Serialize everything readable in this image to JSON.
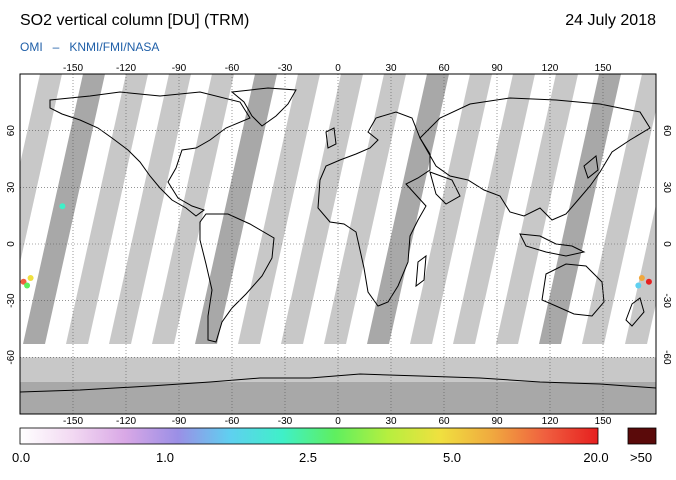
{
  "header": {
    "title": "SO2 vertical column [DU] (TRM)",
    "date": "24 July 2018",
    "credit_instrument": "OMI",
    "credit_separator": "–",
    "credit_agencies": "KNMI/FMI/NASA"
  },
  "map": {
    "projection": "equirectangular",
    "lon_range": [
      -180,
      180
    ],
    "lat_range": [
      -90,
      90
    ],
    "lon_ticks": [
      -150,
      -120,
      -90,
      -60,
      -30,
      0,
      30,
      60,
      90,
      120,
      150
    ],
    "lat_ticks": [
      60,
      30,
      0,
      -30,
      -60
    ],
    "lon_tick_labels": [
      "-150",
      "-120",
      "-90",
      "-60",
      "-30",
      "0",
      "30",
      "60",
      "90",
      "120",
      "150"
    ],
    "lat_tick_labels": [
      "60",
      "30",
      "0",
      "-30",
      "-60"
    ],
    "grid": "dotted",
    "no_data_color": "#a8a8a8",
    "swath_gap_color": "#c8c8c8",
    "land_outline_color": "#000000"
  },
  "colorbar": {
    "labels": [
      "0.0",
      "1.0",
      "2.5",
      "5.0",
      "20.0"
    ],
    "overflow_label": ">50",
    "overflow_color": "#5a0a0a",
    "colors": [
      "#ffffff",
      "#f2d9f2",
      "#d9a8e6",
      "#9b8fe6",
      "#5fd0f0",
      "#3ff0c8",
      "#5fef5f",
      "#b6ef3f",
      "#f0e03f",
      "#f0a83f",
      "#f05f3f",
      "#e61f1f"
    ]
  }
}
